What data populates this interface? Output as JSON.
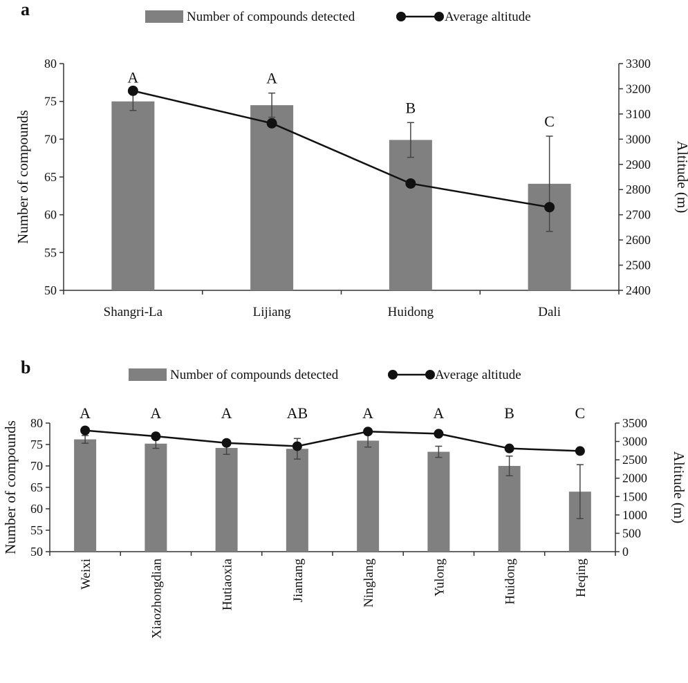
{
  "chart_data": [
    {
      "panel_label": "a",
      "type": "bar",
      "categories": [
        "Shangri-La",
        "Lijiang",
        "Huidong",
        "Dali"
      ],
      "series": [
        {
          "name": "Number of compounds detected",
          "type": "bar",
          "axis": "left",
          "values": [
            75.0,
            74.5,
            69.9,
            64.1
          ],
          "error": [
            1.2,
            1.6,
            2.3,
            6.3
          ],
          "color": "#808080"
        },
        {
          "name": "Average altitude",
          "type": "line",
          "axis": "right",
          "values": [
            3192,
            3063,
            2824,
            2730
          ],
          "color": "#111111"
        }
      ],
      "significance_letters": [
        "A",
        "A",
        "B",
        "C"
      ],
      "ylabel": "Number of compounds",
      "y2label": "Altitude (m)",
      "ylim": [
        50,
        80
      ],
      "y_ticks": [
        50,
        55,
        60,
        65,
        70,
        75,
        80
      ],
      "y2lim": [
        2400,
        3300
      ],
      "y2_ticks": [
        2400,
        2500,
        2600,
        2700,
        2800,
        2900,
        3000,
        3100,
        3200,
        3300
      ],
      "legend_position": "top",
      "grid": false
    },
    {
      "panel_label": "b",
      "type": "bar",
      "categories": [
        "Weixi",
        "Xiaozhongdian",
        "Hutiaoxia",
        "Jiantang",
        "Ninglang",
        "Yulong",
        "Huidong",
        "Heqing"
      ],
      "series": [
        {
          "name": "Number of compounds detected",
          "type": "bar",
          "axis": "left",
          "values": [
            76.2,
            75.2,
            74.2,
            74.0,
            75.9,
            73.3,
            70.0,
            64.0
          ],
          "error": [
            0.9,
            1.1,
            1.5,
            2.4,
            1.5,
            1.3,
            2.3,
            6.3
          ],
          "color": "#808080"
        },
        {
          "name": "Average altitude",
          "type": "line",
          "axis": "right",
          "values": [
            3300,
            3140,
            2960,
            2870,
            3270,
            3210,
            2810,
            2740
          ],
          "color": "#111111"
        }
      ],
      "significance_letters": [
        "A",
        "A",
        "A",
        "AB",
        "A",
        "A",
        "B",
        "C"
      ],
      "ylabel": "Number of compounds",
      "y2label": "Altitude (m)",
      "ylim": [
        50,
        80
      ],
      "y_ticks": [
        50,
        55,
        60,
        65,
        70,
        75,
        80
      ],
      "y2lim": [
        0,
        3500
      ],
      "y2_ticks": [
        0,
        500,
        1000,
        1500,
        2000,
        2500,
        3000,
        3500
      ],
      "legend_position": "top",
      "grid": false
    }
  ]
}
